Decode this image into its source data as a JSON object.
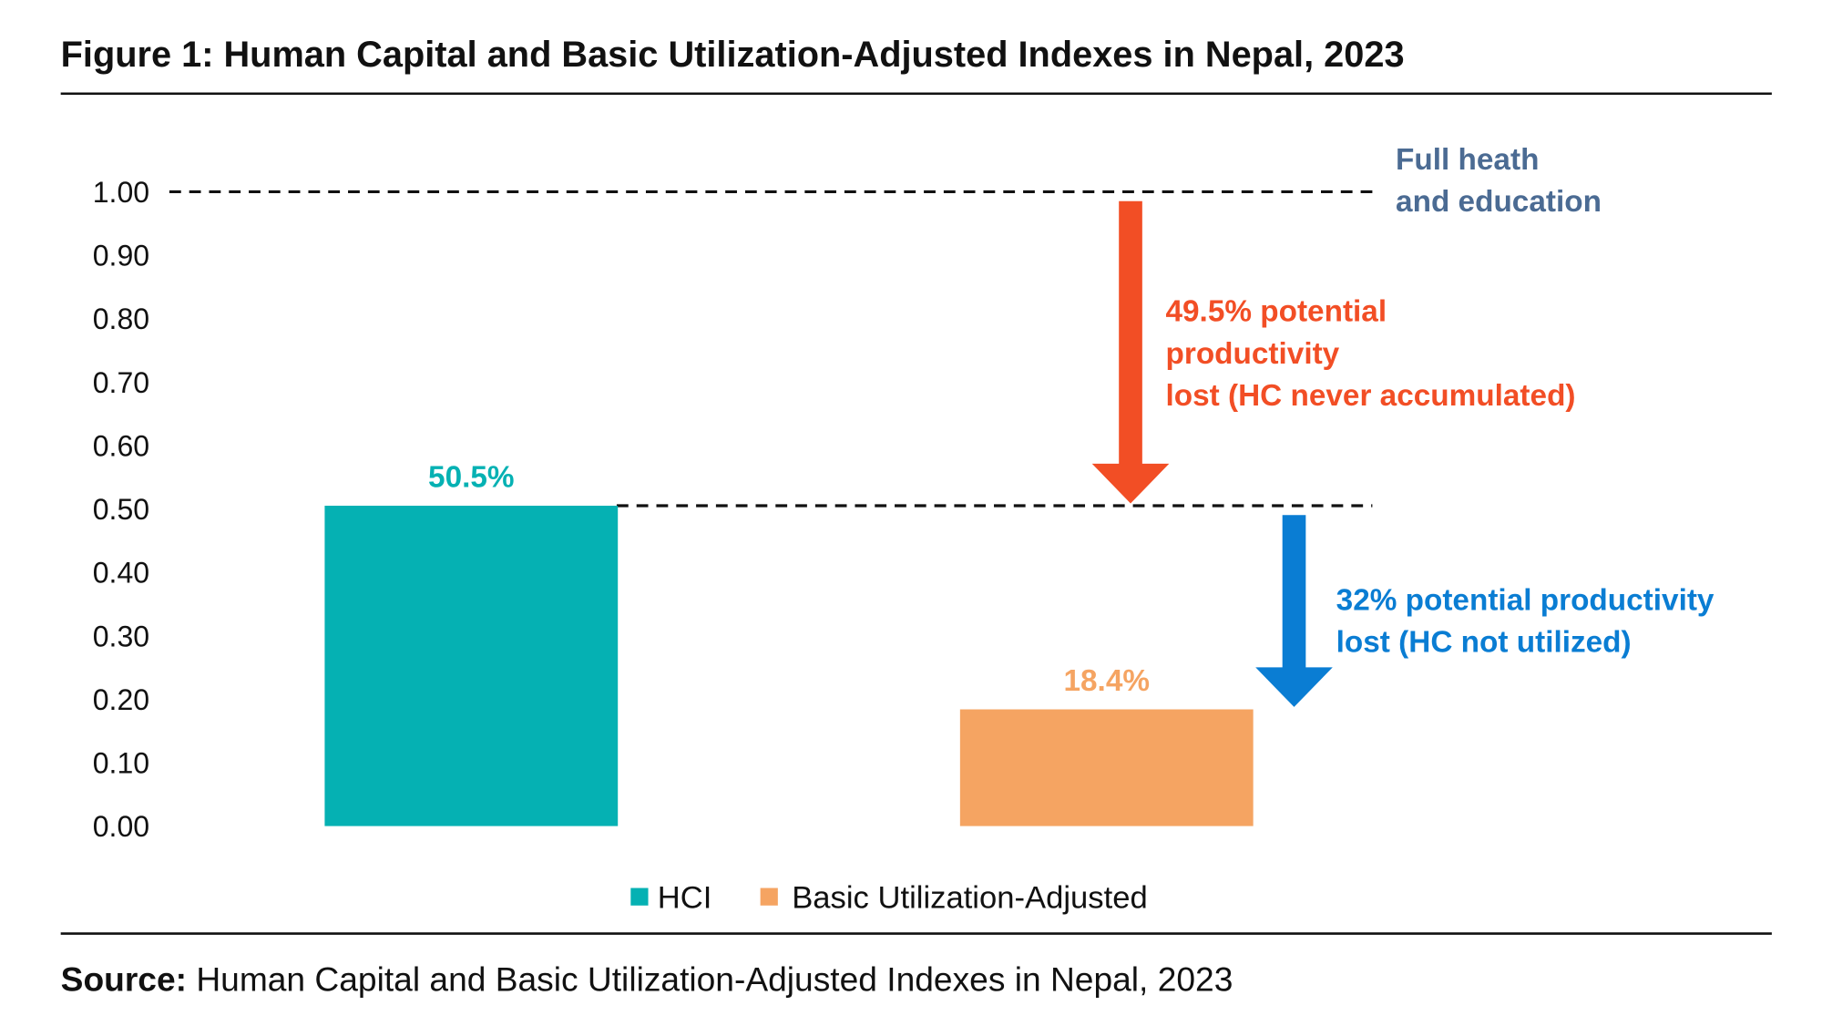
{
  "figure": {
    "title": "Figure 1: Human Capital and Basic Utilization-Adjusted Indexes in Nepal, 2023",
    "source_label": "Source:",
    "source_text": " Human Capital and Basic Utilization-Adjusted Indexes in Nepal, 2023"
  },
  "chart_data": {
    "type": "bar",
    "title": "Figure 1: Human Capital and Basic Utilization-Adjusted Indexes in Nepal, 2023",
    "categories": [
      "HCI",
      "Basic Utilization-Adjusted"
    ],
    "values": [
      0.505,
      0.184
    ],
    "data_labels": [
      "50.5%",
      "18.4%"
    ],
    "colors": [
      "#05b1b3",
      "#f5a462"
    ],
    "ylim": [
      0,
      1
    ],
    "yticks": [
      "0.00",
      "0.10",
      "0.20",
      "0.30",
      "0.40",
      "0.50",
      "0.60",
      "0.70",
      "0.80",
      "0.90",
      "1.00"
    ],
    "grid": false,
    "legend": {
      "placement": "bottom",
      "entries": [
        "HCI",
        "Basic Utilization-Adjusted"
      ]
    },
    "reference_lines": [
      1.0,
      0.505
    ],
    "annotations": {
      "full": {
        "lines": [
          "Full heath",
          "and education"
        ],
        "color": "#4b6b93"
      },
      "never_accumulated": {
        "lines": [
          "49.5% potential",
          "productivity",
          "lost (HC never accumulated)"
        ],
        "color": "#f24e25",
        "from": 1.0,
        "to": 0.505
      },
      "not_utilized": {
        "lines": [
          "32% potential productivity",
          "lost (HC not utilized)"
        ],
        "color": "#0a7dd3",
        "from": 0.505,
        "to": 0.184
      }
    }
  }
}
